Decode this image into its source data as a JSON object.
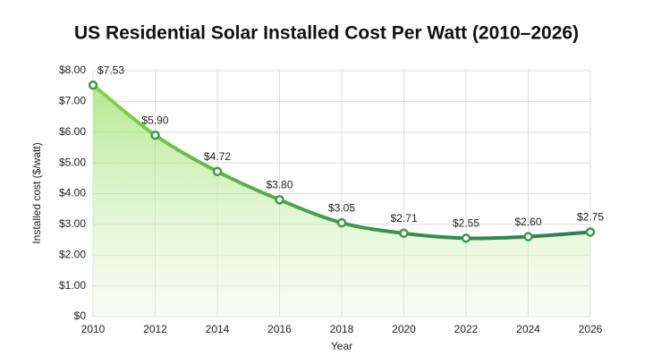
{
  "chart_data": {
    "type": "line",
    "title": "US Residential Solar Installed Cost Per Watt (2010–2026)",
    "x_label": "Year",
    "y_label": "Installed cost ($/watt)",
    "x": [
      2010,
      2012,
      2014,
      2016,
      2018,
      2020,
      2022,
      2024,
      2026
    ],
    "series": [
      {
        "name": "Installed cost",
        "color": "#3c9a4c",
        "values": [
          7.53,
          5.9,
          4.72,
          3.8,
          3.05,
          2.71,
          2.55,
          2.6,
          2.75
        ],
        "value_labels": [
          "$7.53",
          "$5.90",
          "$4.72",
          "$3.80",
          "$3.05",
          "$2.71",
          "$2.55",
          "$2.60",
          "$2.75"
        ]
      }
    ],
    "xlim": [
      2010,
      2026
    ],
    "xticks": [
      2010,
      2012,
      2014,
      2016,
      2018,
      2020,
      2022,
      2024,
      2026
    ],
    "ylim": [
      0,
      8
    ],
    "yticks": [
      {
        "value": 0,
        "label": "$0"
      },
      {
        "value": 1,
        "label": "$1.00"
      },
      {
        "value": 2,
        "label": "$2.00"
      },
      {
        "value": 3,
        "label": "$3.00"
      },
      {
        "value": 4,
        "label": "$4.00"
      },
      {
        "value": 5,
        "label": "$5.00"
      },
      {
        "value": 6,
        "label": "$6.00"
      },
      {
        "value": 7,
        "label": "$7.00"
      },
      {
        "value": 8,
        "label": "$8.00"
      }
    ],
    "grid": true
  }
}
